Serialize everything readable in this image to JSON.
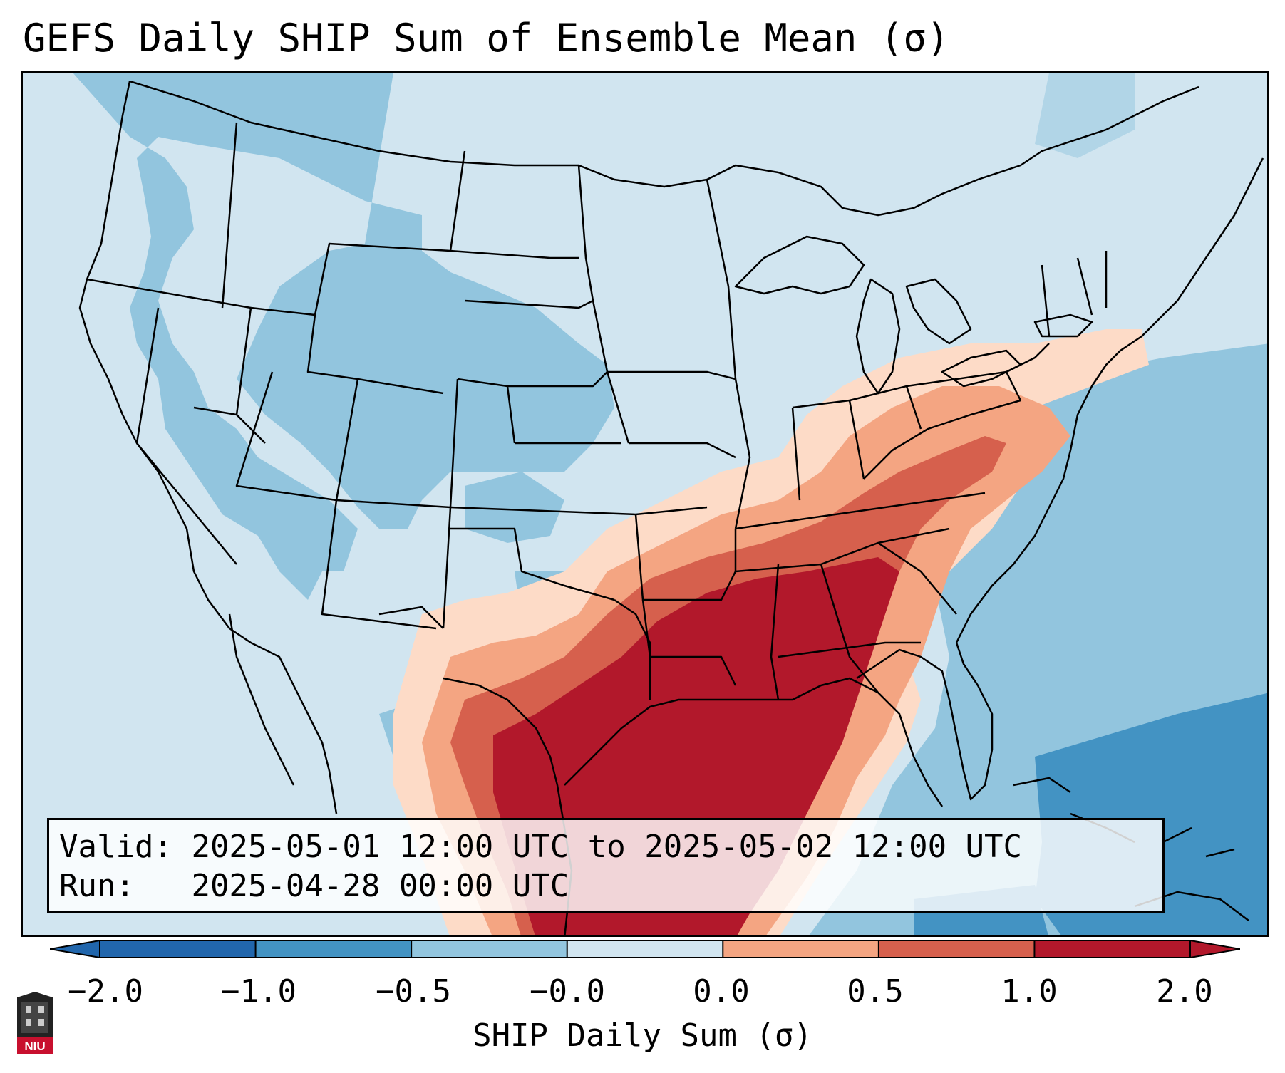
{
  "title": "GEFS Daily SHIP Sum of Ensemble Mean (σ)",
  "info": {
    "valid_label": "Valid:",
    "valid_value": "2025-05-01 12:00 UTC to 2025-05-02 12:00 UTC",
    "run_label": "Run:",
    "run_value": "2025-04-28 00:00 UTC"
  },
  "colorbar": {
    "label": "SHIP Daily Sum (σ)",
    "ticks": [
      "−2.0",
      "−1.0",
      "−0.5",
      "−0.0",
      "0.0",
      "0.5",
      "1.0",
      "2.0"
    ],
    "colors": [
      "#2166ac",
      "#4393c3",
      "#92c5de",
      "#d1e5f0",
      "#fddbc7",
      "#f4a582",
      "#d6604d",
      "#b2182b"
    ],
    "extend": "both"
  },
  "logo": {
    "text": "NIU",
    "icon": "niu-university-logo"
  },
  "colors": {
    "deep_red": "#b2182b",
    "red": "#d6604d",
    "salmon": "#f4a582",
    "peach": "#fddbc7",
    "pale_blue": "#d1e5f0",
    "light_blue": "#92c5de",
    "blue": "#4393c3",
    "dark_blue": "#2166ac"
  }
}
